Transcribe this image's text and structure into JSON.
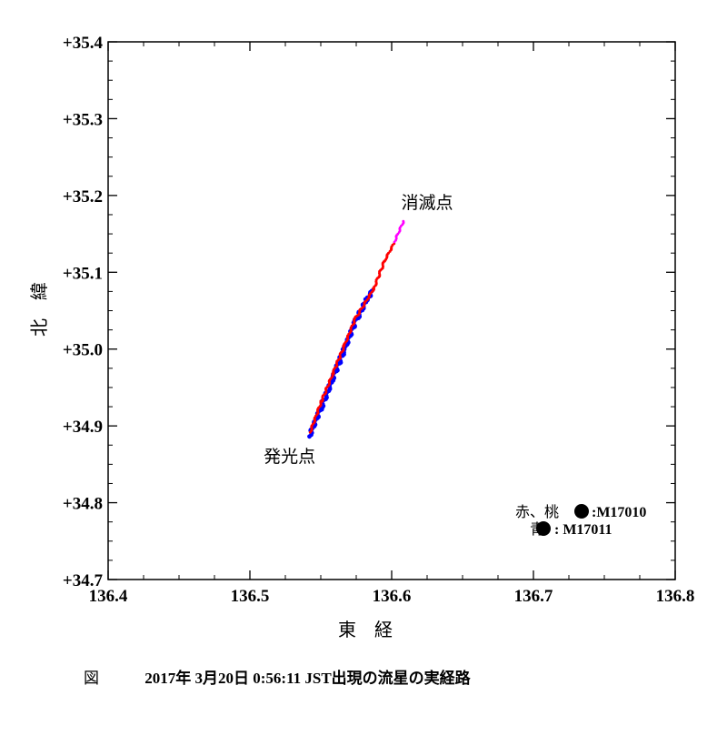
{
  "chart_data": {
    "type": "scatter",
    "xlabel": "東　経",
    "ylabel": "北　緯",
    "xlim": [
      136.4,
      136.8
    ],
    "ylim": [
      34.7,
      35.4
    ],
    "x_ticks": [
      "136.4",
      "136.5",
      "136.6",
      "136.7",
      "136.8"
    ],
    "y_ticks": [
      "+34.7",
      "+34.8",
      "+34.9",
      "+35.0",
      "+35.1",
      "+35.2",
      "+35.3",
      "+35.4"
    ],
    "grid": false,
    "series": [
      {
        "color": "#ff0000",
        "points": [
          [
            136.5425,
            34.892
          ],
          [
            136.5505,
            34.932
          ],
          [
            136.5585,
            34.968
          ],
          [
            136.5665,
            35.004
          ],
          [
            136.5745,
            35.04
          ],
          [
            136.5875,
            35.079
          ],
          [
            136.595,
            35.115
          ],
          [
            136.6015,
            35.137
          ]
        ]
      },
      {
        "color": "#ff00ff",
        "points": [
          [
            136.602,
            35.14
          ],
          [
            136.6085,
            35.167
          ]
        ]
      },
      {
        "color": "#0000ff",
        "points": [
          [
            136.542,
            34.887
          ],
          [
            136.5505,
            34.925
          ],
          [
            136.5585,
            34.962
          ],
          [
            136.5665,
            34.999
          ],
          [
            136.5745,
            35.036
          ],
          [
            136.5825,
            35.065
          ],
          [
            136.5865,
            35.075
          ]
        ]
      }
    ],
    "annotations": [
      {
        "text": "消滅点",
        "x": 136.625,
        "y": 35.183
      },
      {
        "text": "発光点",
        "x": 136.528,
        "y": 34.853
      }
    ],
    "legend": {
      "placement": "bottom-right",
      "entries": [
        {
          "label": "赤、桃",
          "code": ":M17010",
          "color": "#000000"
        },
        {
          "label": "青",
          "code": ": M17011",
          "color": "#000000"
        }
      ]
    }
  },
  "caption": {
    "figure_label": "図",
    "text": "2017年 3月20日 0:56:11 JST出現の流星の実経路"
  }
}
